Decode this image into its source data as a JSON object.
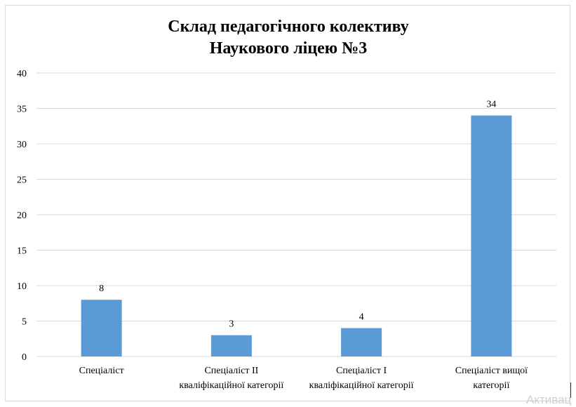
{
  "chart_data": {
    "type": "bar",
    "title_lines": [
      "Склад педагогічного колективу",
      "Наукового ліцею №3"
    ],
    "categories": [
      [
        "Спеціаліст"
      ],
      [
        "Спеціаліст ІІ",
        "кваліфікаційної категорії"
      ],
      [
        "Спеціаліст І",
        "кваліфікаційної категорії"
      ],
      [
        "Спеціаліст вищої",
        "категорії"
      ]
    ],
    "values": [
      8,
      3,
      4,
      34
    ],
    "ylim": [
      0,
      40
    ],
    "yticks": [
      0,
      5,
      10,
      15,
      20,
      25,
      30,
      35,
      40
    ],
    "grid": true,
    "legend": "none",
    "bar_color": "#5b9bd5",
    "grid_color": "#d9d9d9"
  },
  "watermark": "Активац"
}
